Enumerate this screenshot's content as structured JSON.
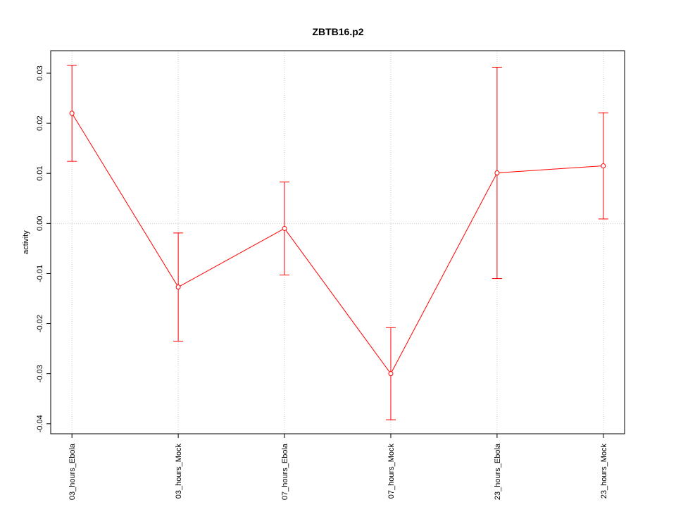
{
  "chart_data": {
    "type": "line",
    "title": "ZBTB16.p2",
    "y_label": "activity",
    "categories": [
      "03_hours_Ebola",
      "03_hours_Mock",
      "07_hours_Ebola",
      "07_hours_Mock",
      "23_hours_Ebola",
      "23_hours_Mock"
    ],
    "values": [
      0.022,
      -0.0127,
      -0.001,
      -0.03,
      0.0101,
      0.0115
    ],
    "errors": [
      0.0096,
      0.0108,
      0.0093,
      0.0092,
      0.0211,
      0.0106
    ],
    "color": "#ff0000",
    "ylim": [
      -0.042,
      0.0345
    ],
    "yticks": [
      -0.04,
      -0.03,
      -0.02,
      -0.01,
      {
        "value": 0,
        "label": "0.00"
      },
      0.01,
      0.02,
      0.03
    ],
    "grid": true
  }
}
